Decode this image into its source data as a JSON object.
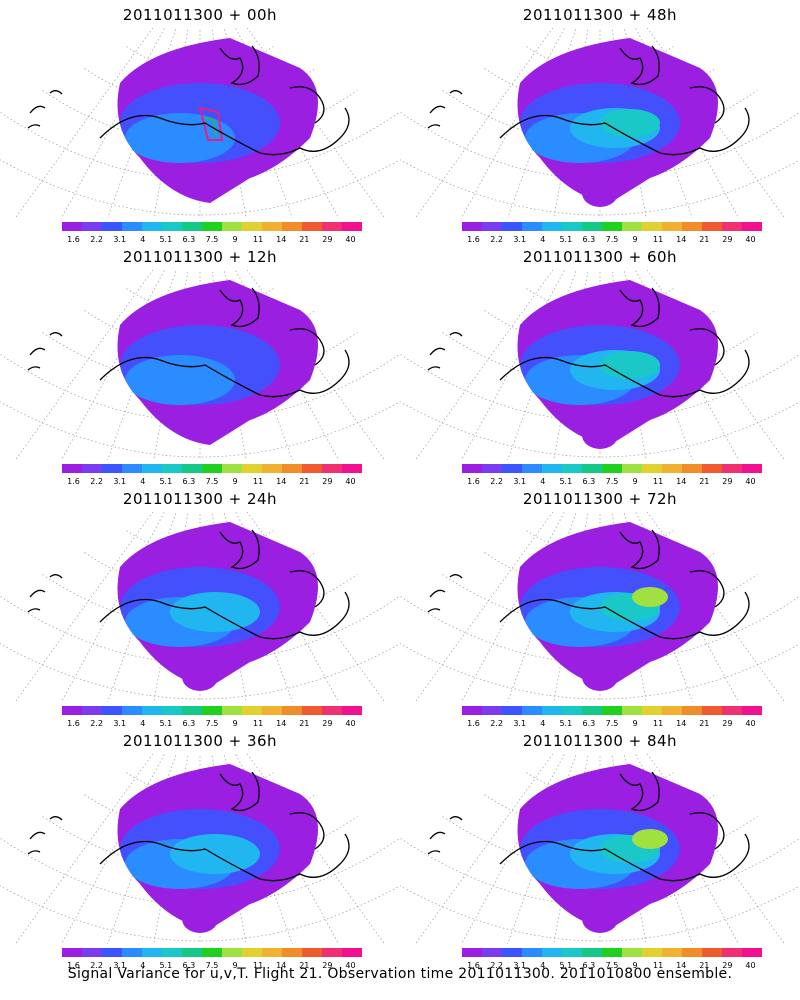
{
  "panels": [
    {
      "title": "2011011300 + 00h",
      "intensity": 0
    },
    {
      "title": "2011011300 + 48h",
      "intensity": 2
    },
    {
      "title": "2011011300 + 12h",
      "intensity": 0
    },
    {
      "title": "2011011300 + 60h",
      "intensity": 2
    },
    {
      "title": "2011011300 + 24h",
      "intensity": 1
    },
    {
      "title": "2011011300 + 72h",
      "intensity": 3
    },
    {
      "title": "2011011300 + 36h",
      "intensity": 1
    },
    {
      "title": "2011011300 + 84h",
      "intensity": 3
    }
  ],
  "colorbar": {
    "colors": [
      "#9b1fe0",
      "#7a3cf0",
      "#3a55ff",
      "#2a8cff",
      "#22b6f0",
      "#1ac8c8",
      "#15c888",
      "#20d020",
      "#a0e040",
      "#e0d030",
      "#f0b030",
      "#f08c2a",
      "#f05a30",
      "#f03070",
      "#f01090"
    ],
    "labels": [
      "1.6",
      "2.2",
      "3.1",
      "4",
      "5.1",
      "6.3",
      "7.5",
      "9",
      "11",
      "14",
      "21",
      "29",
      "40"
    ]
  },
  "footer": "Signal Variance for u,v,T. Flight 21. Observation time 2011011300. 2011010800 ensemble."
}
